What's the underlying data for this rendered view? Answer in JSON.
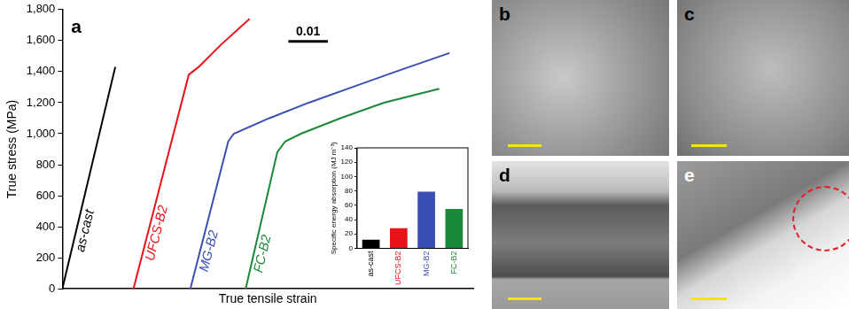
{
  "chart_data": [
    {
      "type": "line",
      "title": "a",
      "x_label": "True tensile strain",
      "y_label": "True stress (MPa)",
      "xlim": [
        0,
        0.104
      ],
      "ylim": [
        0,
        1800
      ],
      "yticks": [
        0,
        200,
        400,
        600,
        800,
        {
          "value": 1000,
          "label": "1,000"
        },
        {
          "value": 1200,
          "label": "1,200"
        },
        {
          "value": 1400,
          "label": "1,400"
        },
        {
          "value": 1600,
          "label": "1,600"
        },
        {
          "value": 1800,
          "label": "1,800"
        }
      ],
      "tick_labels": "y",
      "grid": false,
      "scale_bar": 0.01,
      "series": [
        {
          "name": "as-cast",
          "color": "#000000",
          "x": [
            0,
            0.0134
          ],
          "values": [
            0,
            1430
          ]
        },
        {
          "name": "UFCS-B2",
          "color": "#e8121a",
          "x": [
            0.018,
            0.032,
            0.0345,
            0.04,
            0.0474
          ],
          "values": [
            0,
            1380,
            1430,
            1570,
            1740
          ]
        },
        {
          "name": "MG-B2",
          "color": "#3a4fb5",
          "x": [
            0.0324,
            0.042,
            0.0434,
            0.0524,
            0.0624,
            0.0734,
            0.0844,
            0.098
          ],
          "values": [
            0,
            950,
            1000,
            1100,
            1200,
            1300,
            1400,
            1520
          ]
        },
        {
          "name": "FC-B2",
          "color": "#1a8a3a",
          "x": [
            0.0464,
            0.0544,
            0.0564,
            0.0604,
            0.0704,
            0.0814,
            0.0954
          ],
          "values": [
            0,
            880,
            950,
            1000,
            1100,
            1200,
            1290
          ]
        }
      ]
    },
    {
      "type": "bar",
      "y_label": "Specific energy absorption (MJ m⁻³)",
      "categories": [
        "as-cast",
        "UFCS-B2",
        "MG-B2",
        "FC-B2"
      ],
      "values": [
        12,
        28,
        79,
        55
      ],
      "colors": [
        "#000000",
        "#e8121a",
        "#3a4fb5",
        "#1a8a3a"
      ],
      "ylim": [
        0,
        140
      ],
      "yticks": [
        0,
        20,
        40,
        60,
        80,
        100,
        120,
        140
      ],
      "grid": false
    }
  ],
  "image_panels": [
    {
      "label": "b"
    },
    {
      "label": "c"
    },
    {
      "label": "d"
    },
    {
      "label": "e"
    }
  ]
}
